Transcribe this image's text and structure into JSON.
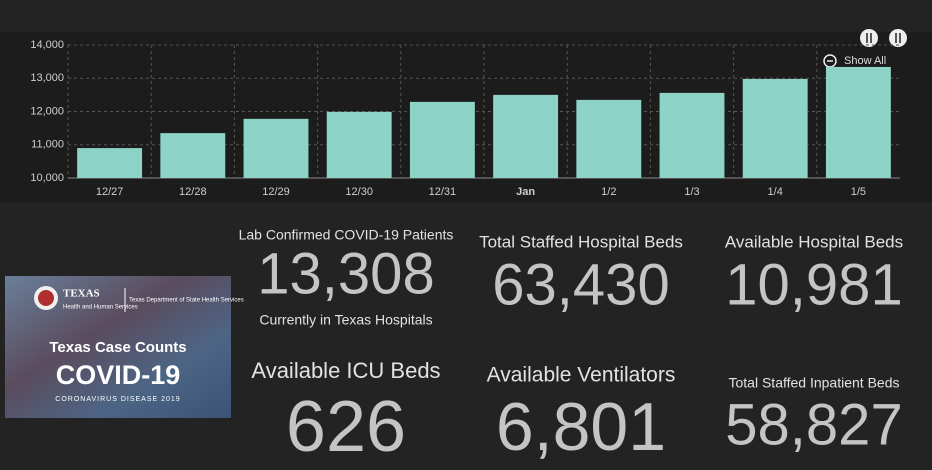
{
  "chart_data": {
    "type": "bar",
    "categories": [
      "12/27",
      "12/28",
      "12/29",
      "12/30",
      "12/31",
      "Jan",
      "1/2",
      "1/3",
      "1/4",
      "1/5"
    ],
    "values": [
      10900,
      11350,
      11780,
      11990,
      12290,
      12500,
      12350,
      12560,
      12980,
      13340
    ],
    "color": "#8dd3c7",
    "ylim": [
      10000,
      14000
    ],
    "yticks": [
      {
        "value": 10000,
        "label": "10,000"
      },
      {
        "value": 11000,
        "label": "11,000"
      },
      {
        "value": 12000,
        "label": "12,000"
      },
      {
        "value": 13000,
        "label": "13,000"
      },
      {
        "value": 14000,
        "label": "14,000"
      }
    ],
    "grid": true,
    "button": "Show All"
  },
  "logo": {
    "state": "TEXAS",
    "agency": "Health and Human Services",
    "department": "Texas Department of State Health Services",
    "heading": "Texas Case Counts",
    "title": "COVID-19",
    "subtitle": "CORONAVIRUS DISEASE 2019"
  },
  "stats": {
    "lab_confirmed": {
      "label": "Lab Confirmed COVID-19 Patients",
      "value": "13,308",
      "note": "Currently in Texas Hospitals"
    },
    "staffed_beds": {
      "label": "Total Staffed Hospital Beds",
      "value": "63,430"
    },
    "available_beds": {
      "label": "Available Hospital Beds",
      "value": "10,981"
    },
    "icu_beds": {
      "label": "Available ICU Beds",
      "value": "626"
    },
    "ventilators": {
      "label": "Available Ventilators",
      "value": "6,801"
    },
    "inpatient_beds": {
      "label": "Total Staffed Inpatient Beds",
      "value": "58,827"
    }
  }
}
